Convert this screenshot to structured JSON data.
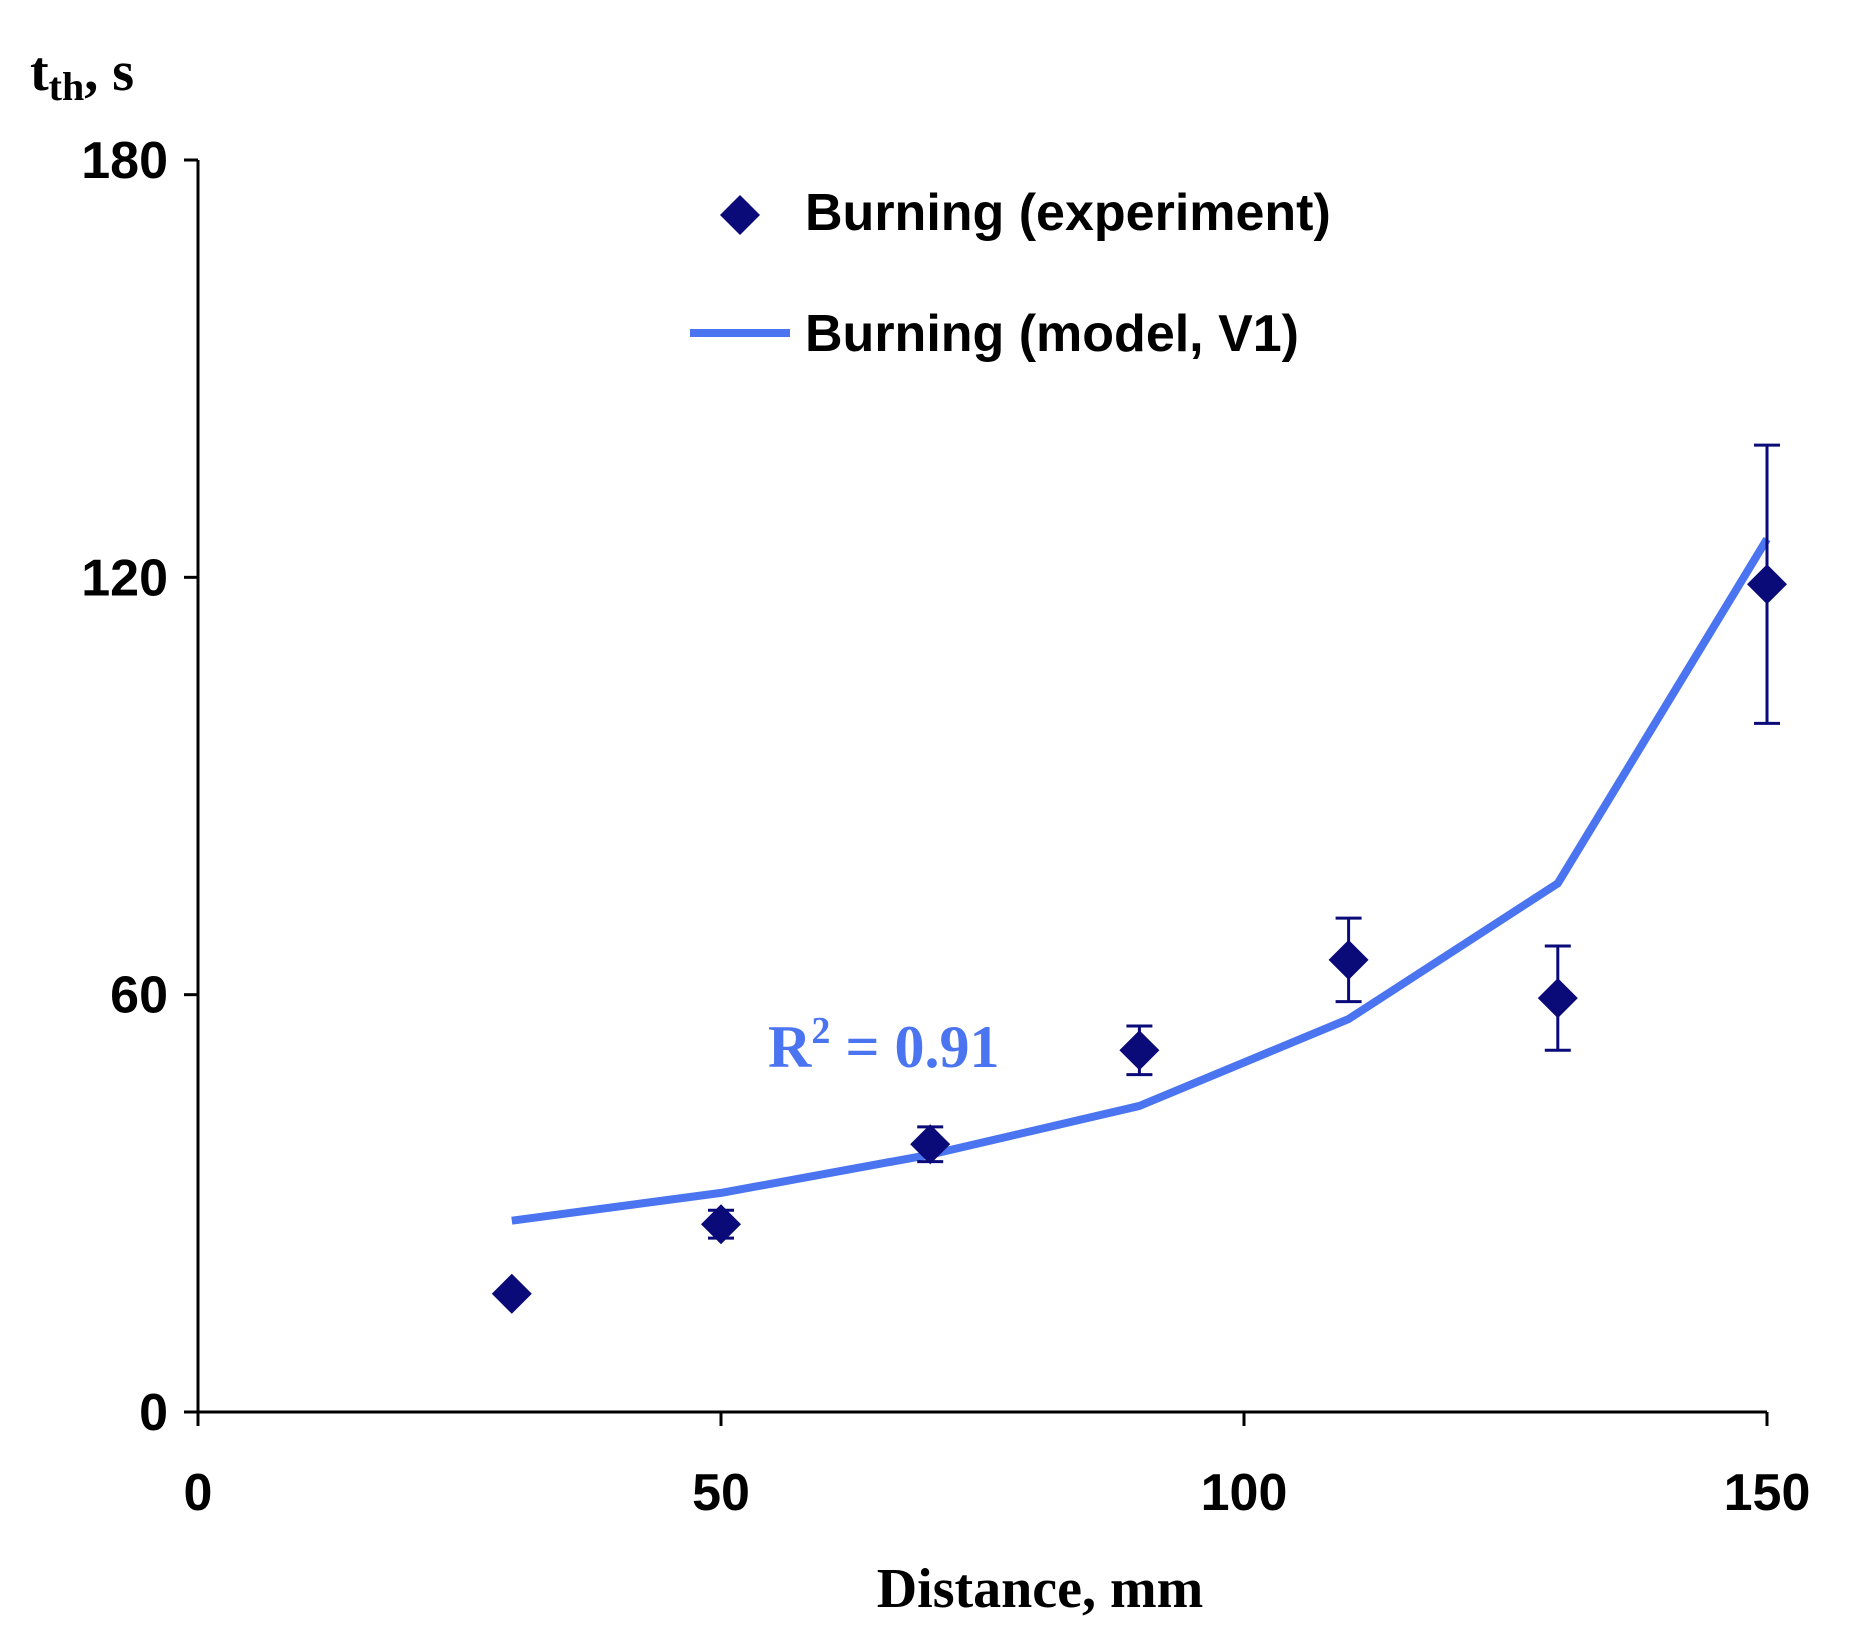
{
  "chart_data": {
    "type": "scatter",
    "title": "",
    "xlabel": "Distance, mm",
    "ylabel_main": "t",
    "ylabel_sub": "th",
    "ylabel_unit": ", s",
    "xlim": [
      0,
      150
    ],
    "ylim": [
      0,
      180
    ],
    "x_ticks": [
      0,
      50,
      100,
      150
    ],
    "x_tick_labels": [
      "0",
      "50",
      "100",
      "150"
    ],
    "y_ticks": [
      0,
      60,
      120,
      180
    ],
    "y_tick_labels": [
      "0",
      "60",
      "120",
      "180"
    ],
    "grid": false,
    "legend_placement": "top-center",
    "series": [
      {
        "name": "Burning (experiment)",
        "kind": "scatter",
        "marker": "diamond",
        "color": "#0a0a78",
        "x": [
          30,
          50,
          70,
          90,
          110,
          130,
          150
        ],
        "y": [
          17,
          27,
          38.5,
          52,
          65,
          59.5,
          119
        ],
        "err_low": [
          0,
          2,
          2.5,
          3.5,
          6,
          7.5,
          20
        ],
        "err_high": [
          0,
          2,
          2.5,
          3.5,
          6,
          7.5,
          20
        ]
      },
      {
        "name": "Burning (model, V1)",
        "kind": "line",
        "color": "#4a74f0",
        "x": [
          30,
          50,
          70,
          90,
          110,
          130,
          150
        ],
        "y": [
          27.5,
          31.5,
          37,
          44,
          56.5,
          76,
          125.5
        ]
      }
    ],
    "annotations": [
      {
        "text_main": "R",
        "text_sup": "2",
        "text_rest": " = 0.91",
        "color": "#4a74f0"
      }
    ]
  }
}
